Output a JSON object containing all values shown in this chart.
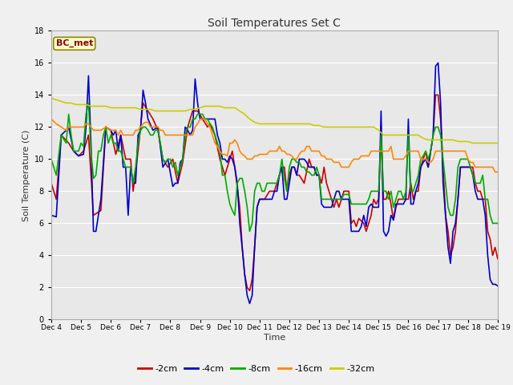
{
  "title": "Soil Temperatures Set C",
  "xlabel": "Time",
  "ylabel": "Soil Temperature (C)",
  "ylim": [
    0,
    18
  ],
  "xlim": [
    0,
    360
  ],
  "annotation": "BC_met",
  "background_color": "#f0f0f0",
  "plot_bg_color": "#e8e8e8",
  "series_colors": [
    "#cc0000",
    "#0000cc",
    "#00aa00",
    "#ff8800",
    "#cccc00"
  ],
  "series_labels": [
    "-2cm",
    "-4cm",
    "-8cm",
    "-16cm",
    "-32cm"
  ],
  "x_tick_labels": [
    "Dec 4",
    "Dec 5",
    "Dec 6",
    "Dec 7",
    "Dec 8",
    "Dec 9",
    "Dec 10",
    "Dec 11",
    "Dec 12",
    "Dec 13",
    "Dec 14",
    "Dec 15",
    "Dec 16",
    "Dec 17",
    "Dec 18",
    "Dec 19"
  ],
  "x_tick_positions": [
    0,
    24,
    48,
    72,
    96,
    120,
    144,
    168,
    192,
    216,
    240,
    264,
    288,
    312,
    336,
    360
  ],
  "grid_color": "#ffffff",
  "linewidth": 1.2
}
